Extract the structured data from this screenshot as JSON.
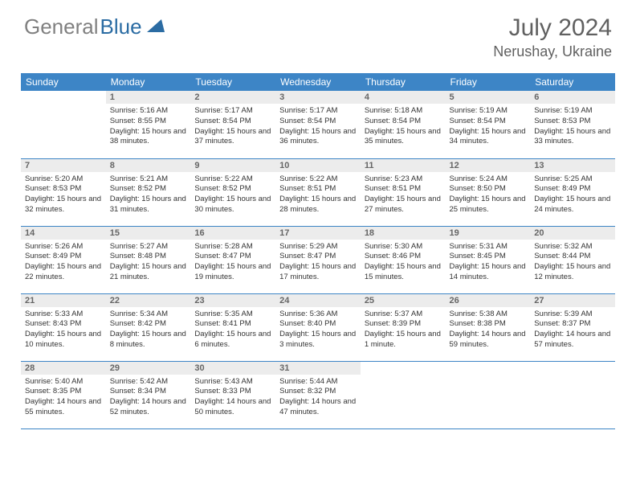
{
  "logo": {
    "gray": "General",
    "blue": "Blue"
  },
  "title": "July 2024",
  "location": "Nerushay, Ukraine",
  "colors": {
    "header_bg": "#3d85c6",
    "header_text": "#ffffff",
    "daynum_bg": "#ececec",
    "daynum_text": "#666666",
    "body_text": "#333333",
    "border": "#3d85c6",
    "logo_gray": "#808080",
    "logo_blue": "#2b6ca3",
    "title_color": "#606060"
  },
  "weekdays": [
    "Sunday",
    "Monday",
    "Tuesday",
    "Wednesday",
    "Thursday",
    "Friday",
    "Saturday"
  ],
  "weeks": [
    [
      {
        "n": "",
        "sr": "",
        "ss": "",
        "dl": ""
      },
      {
        "n": "1",
        "sr": "Sunrise: 5:16 AM",
        "ss": "Sunset: 8:55 PM",
        "dl": "Daylight: 15 hours and 38 minutes."
      },
      {
        "n": "2",
        "sr": "Sunrise: 5:17 AM",
        "ss": "Sunset: 8:54 PM",
        "dl": "Daylight: 15 hours and 37 minutes."
      },
      {
        "n": "3",
        "sr": "Sunrise: 5:17 AM",
        "ss": "Sunset: 8:54 PM",
        "dl": "Daylight: 15 hours and 36 minutes."
      },
      {
        "n": "4",
        "sr": "Sunrise: 5:18 AM",
        "ss": "Sunset: 8:54 PM",
        "dl": "Daylight: 15 hours and 35 minutes."
      },
      {
        "n": "5",
        "sr": "Sunrise: 5:19 AM",
        "ss": "Sunset: 8:54 PM",
        "dl": "Daylight: 15 hours and 34 minutes."
      },
      {
        "n": "6",
        "sr": "Sunrise: 5:19 AM",
        "ss": "Sunset: 8:53 PM",
        "dl": "Daylight: 15 hours and 33 minutes."
      }
    ],
    [
      {
        "n": "7",
        "sr": "Sunrise: 5:20 AM",
        "ss": "Sunset: 8:53 PM",
        "dl": "Daylight: 15 hours and 32 minutes."
      },
      {
        "n": "8",
        "sr": "Sunrise: 5:21 AM",
        "ss": "Sunset: 8:52 PM",
        "dl": "Daylight: 15 hours and 31 minutes."
      },
      {
        "n": "9",
        "sr": "Sunrise: 5:22 AM",
        "ss": "Sunset: 8:52 PM",
        "dl": "Daylight: 15 hours and 30 minutes."
      },
      {
        "n": "10",
        "sr": "Sunrise: 5:22 AM",
        "ss": "Sunset: 8:51 PM",
        "dl": "Daylight: 15 hours and 28 minutes."
      },
      {
        "n": "11",
        "sr": "Sunrise: 5:23 AM",
        "ss": "Sunset: 8:51 PM",
        "dl": "Daylight: 15 hours and 27 minutes."
      },
      {
        "n": "12",
        "sr": "Sunrise: 5:24 AM",
        "ss": "Sunset: 8:50 PM",
        "dl": "Daylight: 15 hours and 25 minutes."
      },
      {
        "n": "13",
        "sr": "Sunrise: 5:25 AM",
        "ss": "Sunset: 8:49 PM",
        "dl": "Daylight: 15 hours and 24 minutes."
      }
    ],
    [
      {
        "n": "14",
        "sr": "Sunrise: 5:26 AM",
        "ss": "Sunset: 8:49 PM",
        "dl": "Daylight: 15 hours and 22 minutes."
      },
      {
        "n": "15",
        "sr": "Sunrise: 5:27 AM",
        "ss": "Sunset: 8:48 PM",
        "dl": "Daylight: 15 hours and 21 minutes."
      },
      {
        "n": "16",
        "sr": "Sunrise: 5:28 AM",
        "ss": "Sunset: 8:47 PM",
        "dl": "Daylight: 15 hours and 19 minutes."
      },
      {
        "n": "17",
        "sr": "Sunrise: 5:29 AM",
        "ss": "Sunset: 8:47 PM",
        "dl": "Daylight: 15 hours and 17 minutes."
      },
      {
        "n": "18",
        "sr": "Sunrise: 5:30 AM",
        "ss": "Sunset: 8:46 PM",
        "dl": "Daylight: 15 hours and 15 minutes."
      },
      {
        "n": "19",
        "sr": "Sunrise: 5:31 AM",
        "ss": "Sunset: 8:45 PM",
        "dl": "Daylight: 15 hours and 14 minutes."
      },
      {
        "n": "20",
        "sr": "Sunrise: 5:32 AM",
        "ss": "Sunset: 8:44 PM",
        "dl": "Daylight: 15 hours and 12 minutes."
      }
    ],
    [
      {
        "n": "21",
        "sr": "Sunrise: 5:33 AM",
        "ss": "Sunset: 8:43 PM",
        "dl": "Daylight: 15 hours and 10 minutes."
      },
      {
        "n": "22",
        "sr": "Sunrise: 5:34 AM",
        "ss": "Sunset: 8:42 PM",
        "dl": "Daylight: 15 hours and 8 minutes."
      },
      {
        "n": "23",
        "sr": "Sunrise: 5:35 AM",
        "ss": "Sunset: 8:41 PM",
        "dl": "Daylight: 15 hours and 6 minutes."
      },
      {
        "n": "24",
        "sr": "Sunrise: 5:36 AM",
        "ss": "Sunset: 8:40 PM",
        "dl": "Daylight: 15 hours and 3 minutes."
      },
      {
        "n": "25",
        "sr": "Sunrise: 5:37 AM",
        "ss": "Sunset: 8:39 PM",
        "dl": "Daylight: 15 hours and 1 minute."
      },
      {
        "n": "26",
        "sr": "Sunrise: 5:38 AM",
        "ss": "Sunset: 8:38 PM",
        "dl": "Daylight: 14 hours and 59 minutes."
      },
      {
        "n": "27",
        "sr": "Sunrise: 5:39 AM",
        "ss": "Sunset: 8:37 PM",
        "dl": "Daylight: 14 hours and 57 minutes."
      }
    ],
    [
      {
        "n": "28",
        "sr": "Sunrise: 5:40 AM",
        "ss": "Sunset: 8:35 PM",
        "dl": "Daylight: 14 hours and 55 minutes."
      },
      {
        "n": "29",
        "sr": "Sunrise: 5:42 AM",
        "ss": "Sunset: 8:34 PM",
        "dl": "Daylight: 14 hours and 52 minutes."
      },
      {
        "n": "30",
        "sr": "Sunrise: 5:43 AM",
        "ss": "Sunset: 8:33 PM",
        "dl": "Daylight: 14 hours and 50 minutes."
      },
      {
        "n": "31",
        "sr": "Sunrise: 5:44 AM",
        "ss": "Sunset: 8:32 PM",
        "dl": "Daylight: 14 hours and 47 minutes."
      },
      {
        "n": "",
        "sr": "",
        "ss": "",
        "dl": ""
      },
      {
        "n": "",
        "sr": "",
        "ss": "",
        "dl": ""
      },
      {
        "n": "",
        "sr": "",
        "ss": "",
        "dl": ""
      }
    ]
  ]
}
